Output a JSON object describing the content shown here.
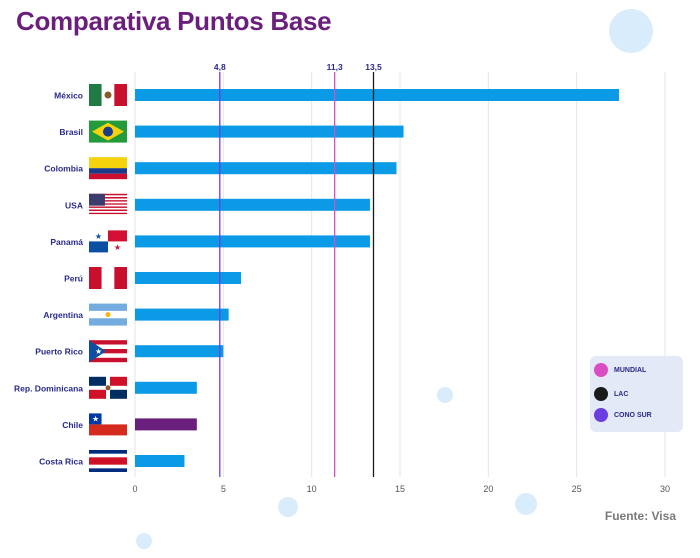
{
  "title": "Comparativa Puntos Base",
  "source": "Fuente: Visa",
  "chart_data": {
    "type": "bar",
    "orientation": "horizontal",
    "title": "Comparativa Puntos Base",
    "categories": [
      "México",
      "Brasil",
      "Colombia",
      "USA",
      "Panamá",
      "Perú",
      "Argentina",
      "Puerto Rico",
      "Rep. Dominicana",
      "Chile",
      "Costa Rica"
    ],
    "values": [
      27.4,
      15.2,
      14.8,
      13.3,
      13.3,
      6.0,
      5.3,
      5.0,
      3.5,
      3.5,
      2.8
    ],
    "bar_colors": [
      "#0a9ae6",
      "#0a9ae6",
      "#0a9ae6",
      "#0a9ae6",
      "#0a9ae6",
      "#0a9ae6",
      "#0a9ae6",
      "#0a9ae6",
      "#0a9ae6",
      "#6b1f7c",
      "#0a9ae6"
    ],
    "xlim": [
      0,
      30
    ],
    "xticks": [
      0,
      5,
      10,
      15,
      20,
      25,
      30
    ],
    "reference_lines": [
      {
        "name": "CONO SUR",
        "value": 4.8,
        "label": "4,8",
        "color": "#6a3fe0"
      },
      {
        "name": "MUNDIAL",
        "value": 11.3,
        "label": "11,3",
        "color": "#d94fc2"
      },
      {
        "name": "LAC",
        "value": 13.5,
        "label": "13,5",
        "color": "#1a1a1a"
      }
    ],
    "grid": "vertical",
    "legend": {
      "placement": "right",
      "entries": [
        {
          "label": "MUNDIAL",
          "color": "#d94fc2"
        },
        {
          "label": "LAC",
          "color": "#1a1a1a"
        },
        {
          "label": "CONO SUR",
          "color": "#6a3fe0"
        }
      ]
    }
  },
  "flags": [
    {
      "country": "México",
      "icon": "mexico-flag-icon"
    },
    {
      "country": "Brasil",
      "icon": "brazil-flag-icon"
    },
    {
      "country": "Colombia",
      "icon": "colombia-flag-icon"
    },
    {
      "country": "USA",
      "icon": "usa-flag-icon"
    },
    {
      "country": "Panamá",
      "icon": "panama-flag-icon"
    },
    {
      "country": "Perú",
      "icon": "peru-flag-icon"
    },
    {
      "country": "Argentina",
      "icon": "argentina-flag-icon"
    },
    {
      "country": "Puerto Rico",
      "icon": "puerto-rico-flag-icon"
    },
    {
      "country": "Rep. Dominicana",
      "icon": "dominican-republic-flag-icon"
    },
    {
      "country": "Chile",
      "icon": "chile-flag-icon"
    },
    {
      "country": "Costa Rica",
      "icon": "costa-rica-flag-icon"
    }
  ],
  "colors": {
    "title": "#6b1f7c",
    "label": "#2a2a8c",
    "bar": "#0a9ae6",
    "highlight": "#6b1f7c",
    "bubble": "#d9ecfb"
  }
}
